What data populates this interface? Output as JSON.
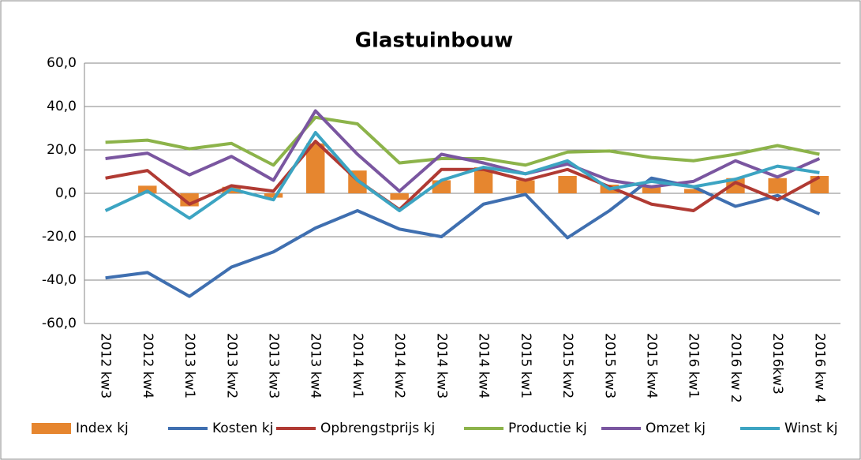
{
  "chart_data": {
    "type": "bar",
    "title": "Glastuinbouw",
    "categories": [
      "2012 kw3",
      "2012 kw4",
      "2013 kw1",
      "2013 kw2",
      "2013 kw3",
      "2013 kw4",
      "2014 kw1",
      "2014 kw2",
      "2014 kw3",
      "2014 kw4",
      "2015 kw1",
      "2015 kw2",
      "2015 kw3",
      "2015 kw4",
      "2016 kw1",
      "2016 kw 2",
      "2016kw3",
      "2016 kw 4"
    ],
    "series": [
      {
        "name": "Index kj",
        "type": "bar",
        "color": "#e6862f",
        "values": [
          0,
          3.5,
          -6,
          3,
          -2,
          23,
          10.5,
          -3,
          6,
          12,
          6,
          8,
          4,
          3,
          2,
          7,
          7,
          8
        ]
      },
      {
        "name": "Kosten kj",
        "type": "line",
        "color": "#3f6fb0",
        "values": [
          -39,
          -36.5,
          -47.5,
          -34,
          -27,
          -16,
          -8,
          -16.5,
          -20,
          -5,
          -0.5,
          -20.5,
          -8,
          7,
          3,
          -6,
          -1,
          -9.5
        ]
      },
      {
        "name": "Opbrengstprijs kj",
        "type": "line",
        "color": "#b03a33",
        "values": [
          7,
          10.5,
          -5,
          3.5,
          1,
          24,
          6,
          -7.5,
          11,
          11,
          6,
          11,
          3,
          -5,
          -8,
          5,
          -3,
          7.5
        ]
      },
      {
        "name": "Productie kj",
        "type": "line",
        "color": "#8cb34a",
        "values": [
          23.5,
          24.5,
          20.5,
          23,
          13,
          35,
          32,
          14,
          16,
          16,
          13,
          19,
          19.5,
          16.5,
          15,
          18,
          22,
          18
        ]
      },
      {
        "name": "Omzet kj",
        "type": "line",
        "color": "#7a56a0",
        "values": [
          16,
          18.5,
          8.5,
          17,
          6,
          38,
          18,
          1,
          18,
          14,
          9,
          13.5,
          6,
          3,
          5.5,
          15,
          7.5,
          16
        ]
      },
      {
        "name": "Winst kj",
        "type": "line",
        "color": "#3ca4c2",
        "values": [
          -8,
          1,
          -11.5,
          2,
          -3,
          28,
          6,
          -8,
          6,
          12,
          9,
          15,
          2,
          5.5,
          3,
          6.5,
          12.5,
          9.5
        ]
      }
    ],
    "ylim": [
      -60,
      60
    ],
    "yticks": [
      {
        "value": 60,
        "label": "60,0"
      },
      {
        "value": 40,
        "label": "40,0"
      },
      {
        "value": 20,
        "label": "20,0"
      },
      {
        "value": 0,
        "label": "0,0"
      },
      {
        "value": -20,
        "label": "-20,0"
      },
      {
        "value": -40,
        "label": "-40,0"
      },
      {
        "value": -60,
        "label": "-60,0"
      }
    ],
    "grid": true,
    "legend": "bottom"
  }
}
